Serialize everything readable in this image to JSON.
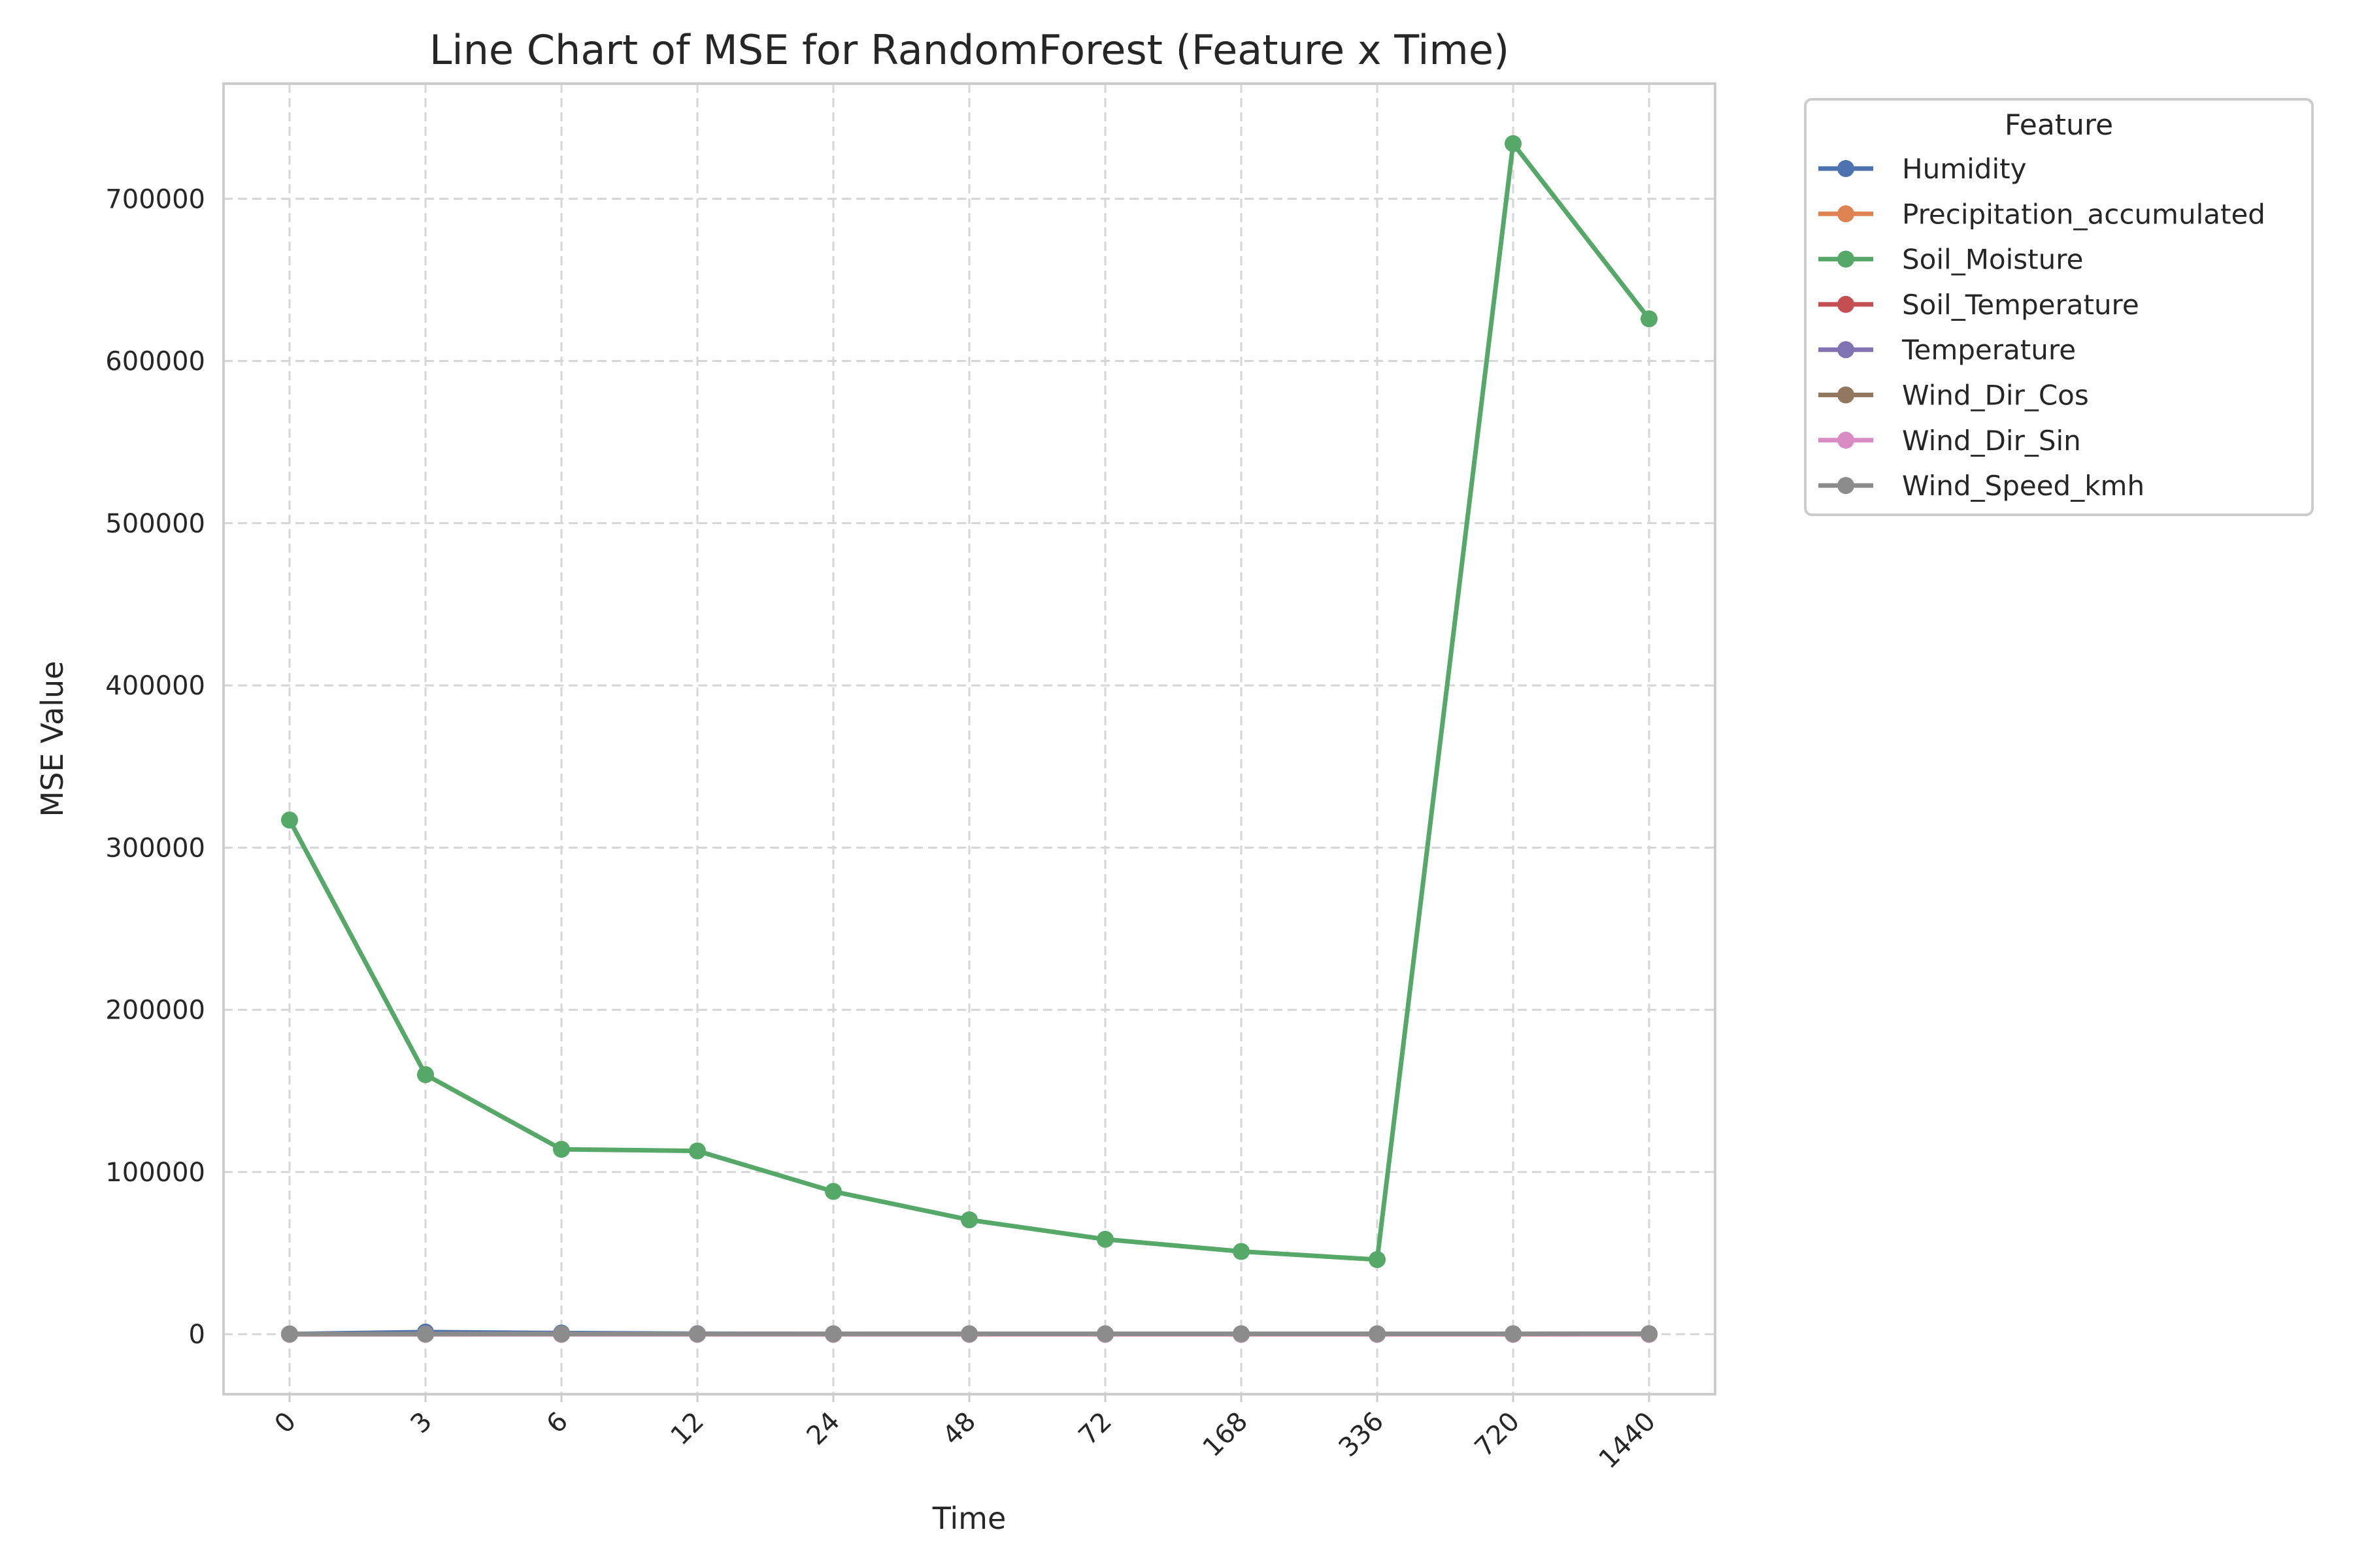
{
  "chart_data": {
    "type": "line",
    "title": "Line Chart of MSE for RandomForest (Feature x Time)",
    "xlabel": "Time",
    "ylabel": "MSE Value",
    "categories": [
      "0",
      "3",
      "6",
      "12",
      "24",
      "48",
      "72",
      "168",
      "336",
      "720",
      "1440"
    ],
    "ylim": [
      -37000,
      771000
    ],
    "yticks": [
      0,
      100000,
      200000,
      300000,
      400000,
      500000,
      600000,
      700000
    ],
    "ytick_labels": [
      "0",
      "100000",
      "200000",
      "300000",
      "400000",
      "500000",
      "600000",
      "700000"
    ],
    "grid": true,
    "legend": {
      "title": "Feature",
      "position": "outside-top-right"
    },
    "series": [
      {
        "name": "Humidity",
        "color": "#4c72b0",
        "values": [
          120,
          1300,
          700,
          300,
          200,
          200,
          150,
          150,
          100,
          100,
          100
        ]
      },
      {
        "name": "Precipitation_accumulated",
        "color": "#dd8452",
        "values": [
          5,
          5,
          5,
          5,
          5,
          5,
          5,
          5,
          5,
          5,
          5
        ]
      },
      {
        "name": "Soil_Moisture",
        "color": "#55a868",
        "values": [
          317000,
          160000,
          114000,
          113000,
          88000,
          70500,
          58500,
          51000,
          46000,
          734000,
          626000
        ]
      },
      {
        "name": "Soil_Temperature",
        "color": "#c44e52",
        "values": [
          30,
          40,
          40,
          40,
          40,
          40,
          40,
          40,
          40,
          40,
          40
        ]
      },
      {
        "name": "Temperature",
        "color": "#8172b3",
        "values": [
          30,
          40,
          40,
          40,
          40,
          40,
          40,
          40,
          40,
          40,
          40
        ]
      },
      {
        "name": "Wind_Dir_Cos",
        "color": "#937860",
        "values": [
          1,
          1,
          1,
          1,
          1,
          1,
          1,
          1,
          1,
          1,
          1
        ]
      },
      {
        "name": "Wind_Dir_Sin",
        "color": "#da8bc3",
        "values": [
          1,
          1,
          1,
          1,
          1,
          1,
          1,
          1,
          1,
          1,
          1
        ]
      },
      {
        "name": "Wind_Speed_kmh",
        "color": "#8c8c8c",
        "values": [
          150,
          180,
          200,
          200,
          220,
          230,
          250,
          260,
          270,
          280,
          290
        ]
      }
    ]
  }
}
